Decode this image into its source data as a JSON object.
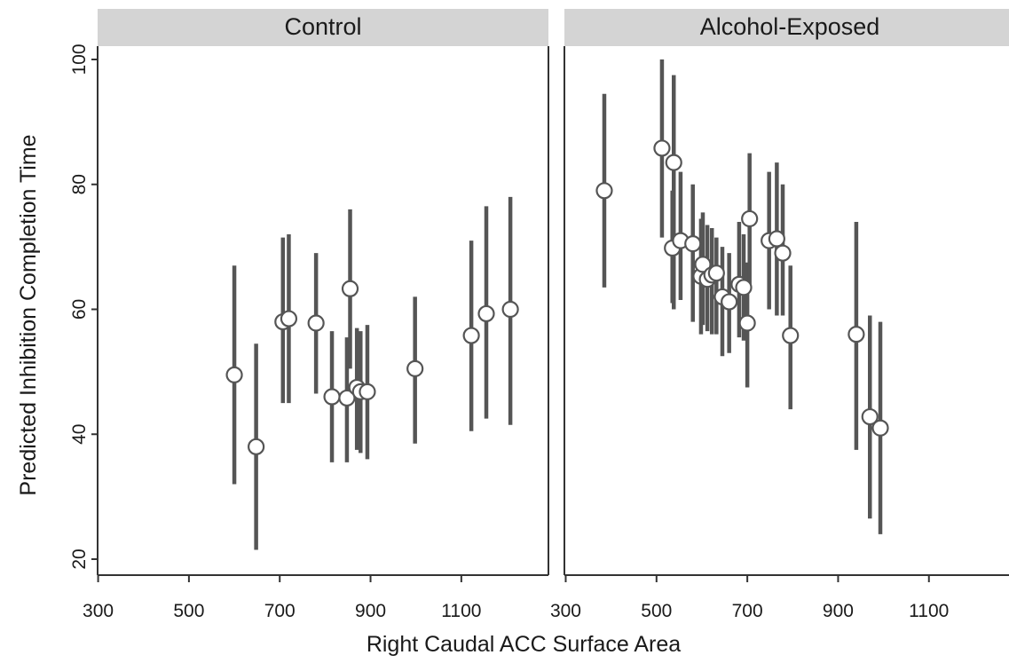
{
  "chart_data": {
    "type": "scatter",
    "xlabel": "Right Caudal ACC Surface Area",
    "ylabel": "Predicted Inhibition Completion Time",
    "xlim": [
      270,
      1220
    ],
    "ylim": [
      17,
      102
    ],
    "xticks": [
      300,
      500,
      700,
      900,
      1100
    ],
    "yticks": [
      20,
      40,
      60,
      80,
      100
    ],
    "xtick_labels": [
      "300",
      "500",
      "700",
      "900",
      "1100"
    ],
    "ytick_labels": [
      "20",
      "40",
      "60",
      "80",
      "100"
    ],
    "grid": false,
    "panels": [
      {
        "title": "Control",
        "points": [
          {
            "x": 600,
            "y": 49.5,
            "lo": 32.0,
            "hi": 67.0
          },
          {
            "x": 648,
            "y": 38.0,
            "lo": 21.5,
            "hi": 54.5
          },
          {
            "x": 707,
            "y": 58.0,
            "lo": 45.0,
            "hi": 71.5
          },
          {
            "x": 720,
            "y": 58.5,
            "lo": 45.0,
            "hi": 72.0
          },
          {
            "x": 780,
            "y": 57.8,
            "lo": 46.5,
            "hi": 69.0
          },
          {
            "x": 815,
            "y": 46.0,
            "lo": 35.5,
            "hi": 56.5
          },
          {
            "x": 848,
            "y": 45.8,
            "lo": 35.5,
            "hi": 55.5
          },
          {
            "x": 855,
            "y": 63.3,
            "lo": 50.5,
            "hi": 76.0
          },
          {
            "x": 870,
            "y": 47.5,
            "lo": 37.5,
            "hi": 57.0
          },
          {
            "x": 878,
            "y": 46.8,
            "lo": 37.0,
            "hi": 56.5
          },
          {
            "x": 893,
            "y": 46.8,
            "lo": 36.0,
            "hi": 57.5
          },
          {
            "x": 998,
            "y": 50.5,
            "lo": 38.5,
            "hi": 62.0
          },
          {
            "x": 1122,
            "y": 55.8,
            "lo": 40.5,
            "hi": 71.0
          },
          {
            "x": 1155,
            "y": 59.3,
            "lo": 42.5,
            "hi": 76.5
          },
          {
            "x": 1208,
            "y": 60.0,
            "lo": 41.5,
            "hi": 78.0
          }
        ]
      },
      {
        "title": "Alcohol-Exposed",
        "points": [
          {
            "x": 385,
            "y": 79.0,
            "lo": 63.5,
            "hi": 94.5
          },
          {
            "x": 512,
            "y": 85.8,
            "lo": 71.5,
            "hi": 100.0
          },
          {
            "x": 535,
            "y": 69.8,
            "lo": 61.0,
            "hi": 79.0
          },
          {
            "x": 538,
            "y": 83.5,
            "lo": 60.0,
            "hi": 97.5
          },
          {
            "x": 553,
            "y": 71.0,
            "lo": 61.5,
            "hi": 82.0
          },
          {
            "x": 580,
            "y": 70.5,
            "lo": 58.0,
            "hi": 80.0
          },
          {
            "x": 598,
            "y": 65.3,
            "lo": 56.0,
            "hi": 74.5
          },
          {
            "x": 602,
            "y": 67.2,
            "lo": 57.5,
            "hi": 75.5
          },
          {
            "x": 612,
            "y": 64.8,
            "lo": 56.5,
            "hi": 73.5
          },
          {
            "x": 622,
            "y": 65.5,
            "lo": 56.0,
            "hi": 73.0
          },
          {
            "x": 632,
            "y": 65.8,
            "lo": 56.0,
            "hi": 71.5
          },
          {
            "x": 645,
            "y": 62.0,
            "lo": 52.5,
            "hi": 70.0
          },
          {
            "x": 660,
            "y": 61.2,
            "lo": 53.0,
            "hi": 69.0
          },
          {
            "x": 682,
            "y": 64.0,
            "lo": 55.5,
            "hi": 74.0
          },
          {
            "x": 692,
            "y": 63.5,
            "lo": 55.0,
            "hi": 72.0
          },
          {
            "x": 700,
            "y": 57.8,
            "lo": 47.5,
            "hi": 67.5
          },
          {
            "x": 705,
            "y": 74.5,
            "lo": 63.5,
            "hi": 85.0
          },
          {
            "x": 748,
            "y": 71.0,
            "lo": 60.0,
            "hi": 82.0
          },
          {
            "x": 765,
            "y": 71.3,
            "lo": 59.0,
            "hi": 83.5
          },
          {
            "x": 778,
            "y": 69.0,
            "lo": 59.0,
            "hi": 80.0
          },
          {
            "x": 795,
            "y": 55.8,
            "lo": 44.0,
            "hi": 67.0
          },
          {
            "x": 940,
            "y": 56.0,
            "lo": 37.5,
            "hi": 74.0
          },
          {
            "x": 970,
            "y": 42.8,
            "lo": 26.5,
            "hi": 59.0
          },
          {
            "x": 993,
            "y": 41.0,
            "lo": 24.0,
            "hi": 58.0
          }
        ]
      }
    ]
  }
}
